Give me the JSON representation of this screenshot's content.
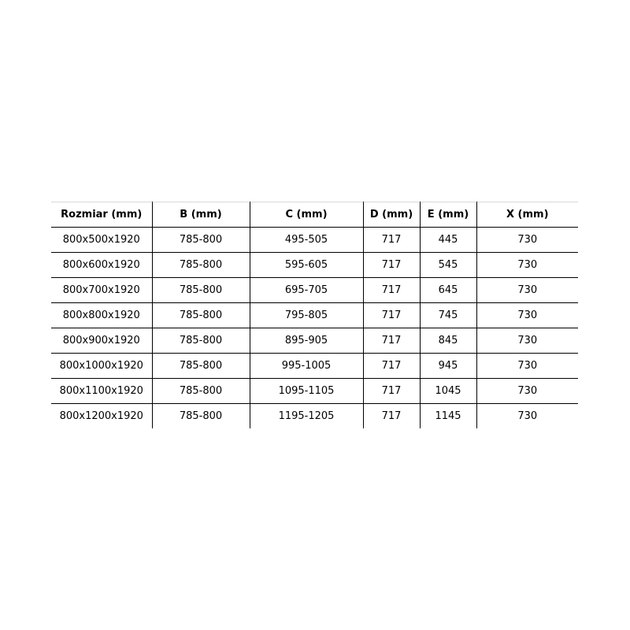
{
  "table": {
    "headers": [
      "Rozmiar (mm)",
      "B (mm)",
      "C (mm)",
      "D (mm)",
      "E (mm)",
      "X (mm)"
    ],
    "rows": [
      [
        "800x500x1920",
        "785-800",
        "495-505",
        "717",
        "445",
        "730"
      ],
      [
        "800x600x1920",
        "785-800",
        "595-605",
        "717",
        "545",
        "730"
      ],
      [
        "800x700x1920",
        "785-800",
        "695-705",
        "717",
        "645",
        "730"
      ],
      [
        "800x800x1920",
        "785-800",
        "795-805",
        "717",
        "745",
        "730"
      ],
      [
        "800x900x1920",
        "785-800",
        "895-905",
        "717",
        "845",
        "730"
      ],
      [
        "800x1000x1920",
        "785-800",
        "995-1005",
        "717",
        "945",
        "730"
      ],
      [
        "800x1100x1920",
        "785-800",
        "1095-1105",
        "717",
        "1045",
        "730"
      ],
      [
        "800x1200x1920",
        "785-800",
        "1195-1205",
        "717",
        "1145",
        "730"
      ]
    ]
  }
}
